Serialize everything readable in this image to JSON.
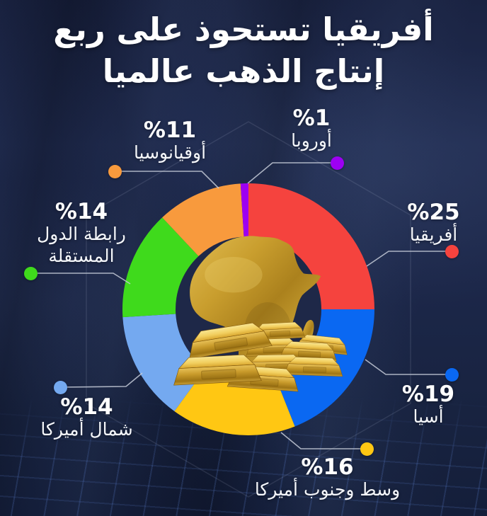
{
  "title": {
    "line1": "أفريقيا تستحوذ على ربع",
    "line2": "إنتاج الذهب عالميا"
  },
  "chart_data": {
    "type": "pie",
    "variant": "donut",
    "title": "أفريقيا تستحوذ على ربع إنتاج الذهب عالميا",
    "unit": "%",
    "direction": "clockwise",
    "start_angle_deg": 0,
    "center_graphic": "gold-africa-map-with-gold-bars",
    "slices": [
      {
        "key": "africa",
        "label": "أفريقيا",
        "value": 25,
        "display": "%25",
        "color": "#F5433E"
      },
      {
        "key": "asia",
        "label": "أسيا",
        "value": 19,
        "display": "%19",
        "color": "#0A68F2"
      },
      {
        "key": "csamerica",
        "label": "وسط وجنوب أميركا",
        "value": 16,
        "display": "%16",
        "color": "#FFC713"
      },
      {
        "key": "namerica",
        "label": "شمال أميركا",
        "value": 14,
        "display": "%14",
        "color": "#74A9F0"
      },
      {
        "key": "cis",
        "label": "رابطة الدول المستقلة",
        "value": 14,
        "display": "%14",
        "color": "#3FDA1C"
      },
      {
        "key": "oceania",
        "label": "أوقيانوسيا",
        "value": 11,
        "display": "%11",
        "color": "#F89A3D"
      },
      {
        "key": "europe",
        "label": "أوروبا",
        "value": 1,
        "display": "%1",
        "color": "#9D00F2"
      }
    ]
  },
  "colors": {
    "background": "#1C2749",
    "title_text": "#FFFFFF",
    "label_text": "#F4F6FA",
    "leader_line": "#C5CBD8",
    "gold": "#D4A62C"
  }
}
